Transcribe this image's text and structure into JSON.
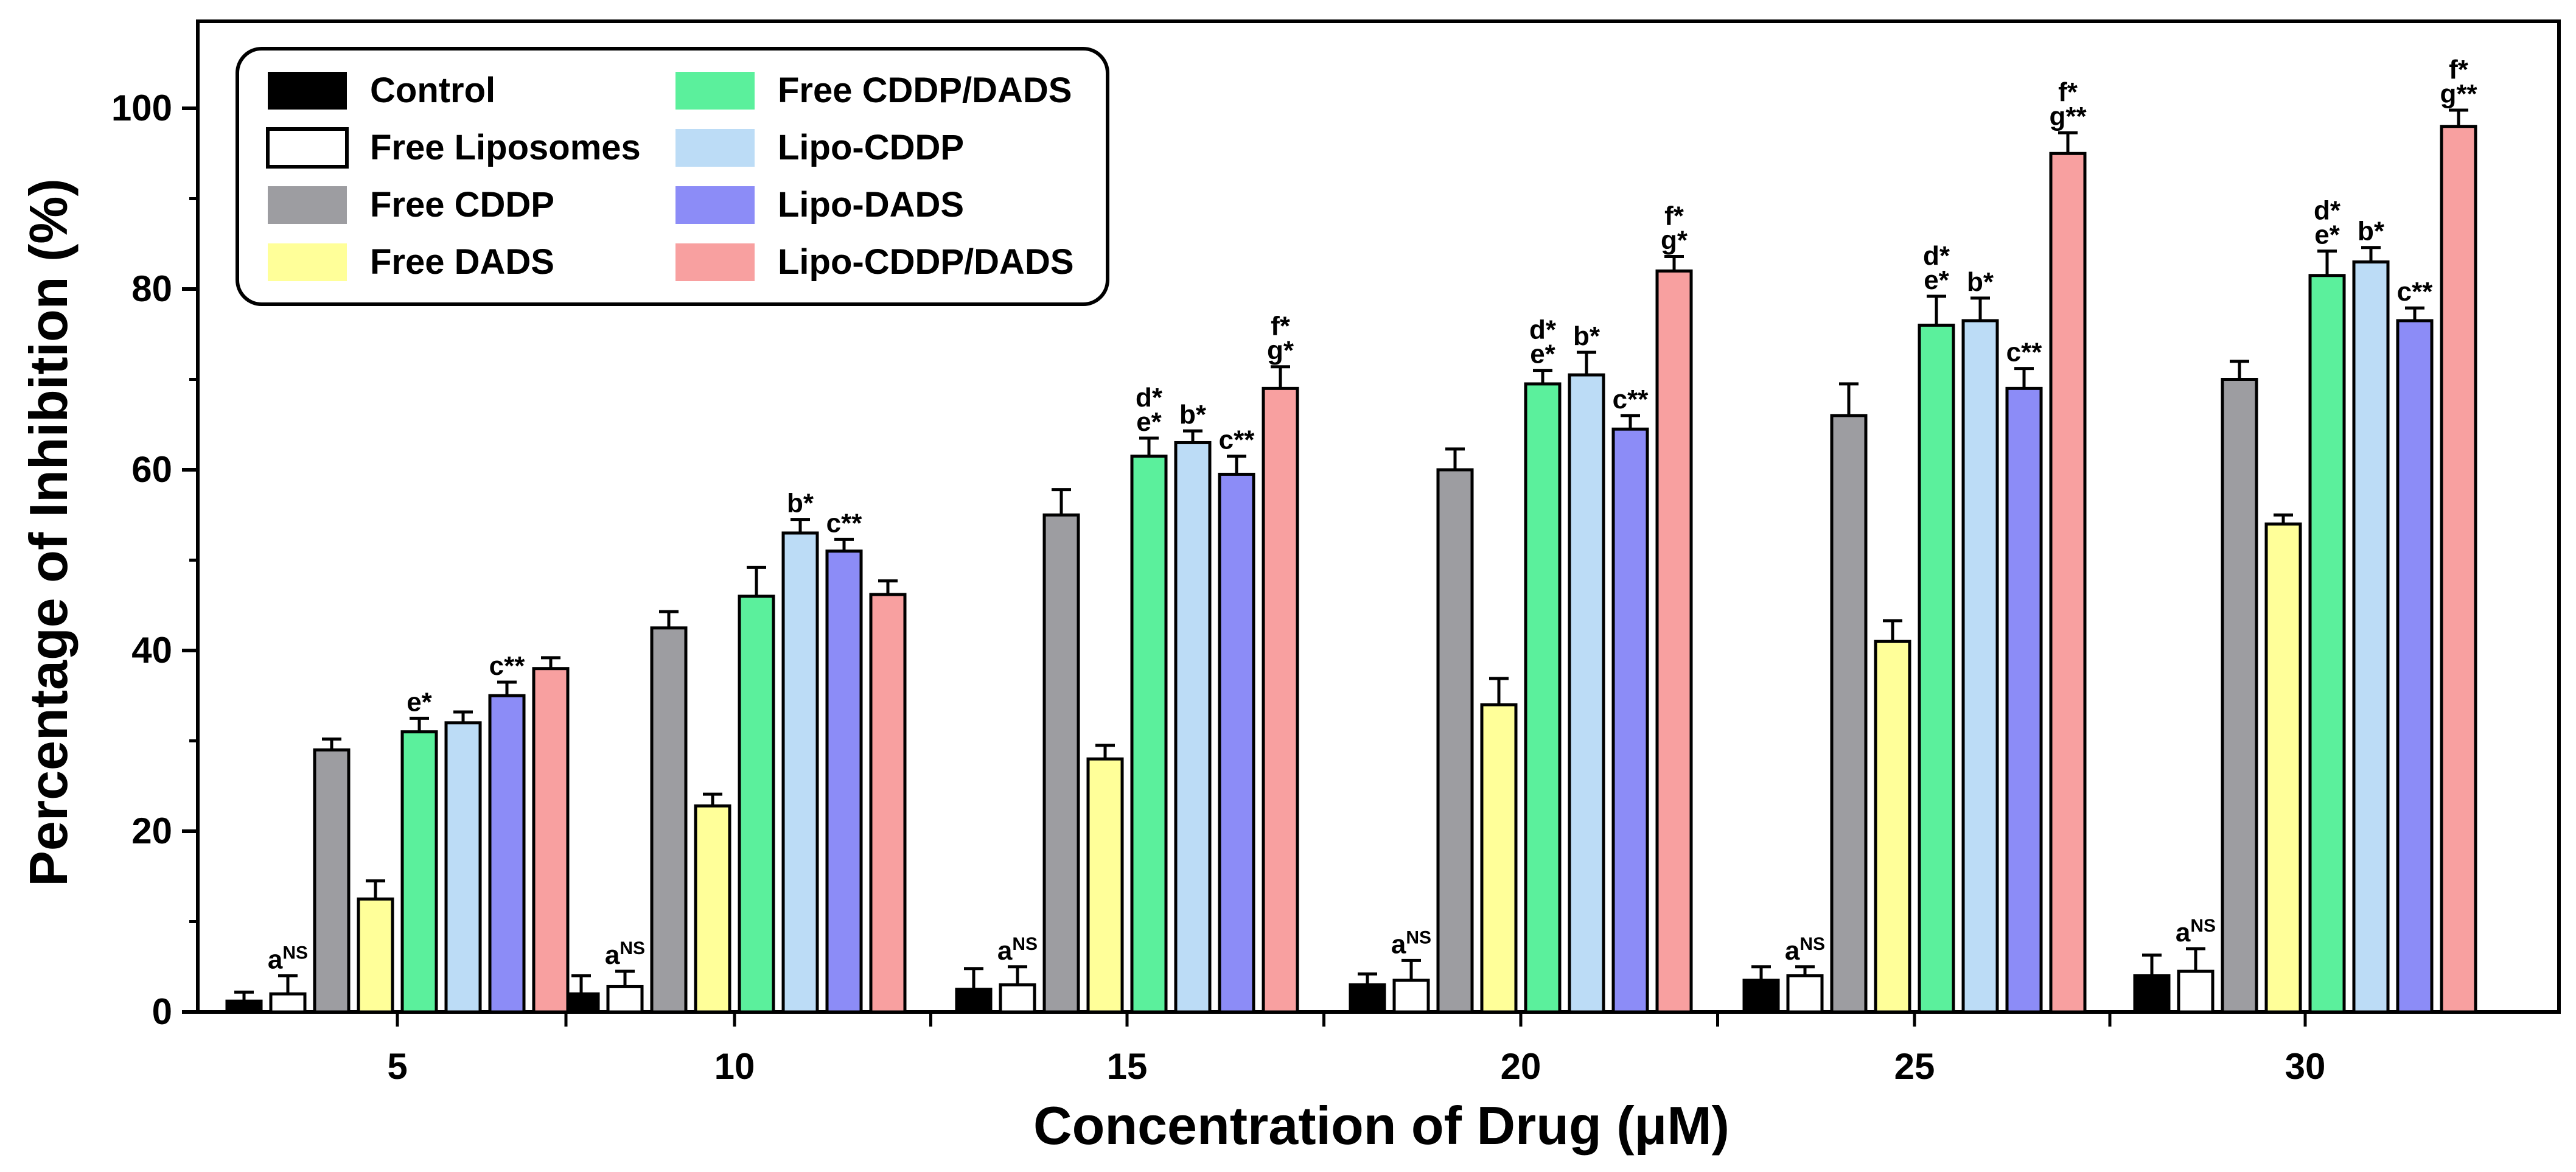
{
  "chart_data": {
    "type": "bar",
    "title": "",
    "xlabel": "Concentration of Drug (μM)",
    "ylabel": "Percentage of Inhibition (%)",
    "ylim": [
      0,
      110
    ],
    "yticks": [
      0,
      20,
      40,
      60,
      80,
      100
    ],
    "grid": false,
    "legend_position": "top-left",
    "categories": [
      "5",
      "10",
      "15",
      "20",
      "25",
      "30"
    ],
    "series": [
      {
        "name": "Control",
        "color": "#000000",
        "values": [
          1.2,
          2.0,
          2.5,
          3.0,
          3.5,
          4.0
        ],
        "errors": [
          1.0,
          2.0,
          2.3,
          1.2,
          1.5,
          2.3
        ]
      },
      {
        "name": "Free Liposomes",
        "color": "#ffffff",
        "values": [
          2.0,
          2.8,
          3.0,
          3.5,
          4.0,
          4.5
        ],
        "errors": [
          2.0,
          1.7,
          2.0,
          2.2,
          1.0,
          2.5
        ]
      },
      {
        "name": "Free CDDP",
        "color": "#9d9da1",
        "values": [
          29.0,
          42.5,
          55.0,
          60.0,
          66.0,
          70.0
        ],
        "errors": [
          1.2,
          1.8,
          2.8,
          2.3,
          3.5,
          2.0
        ]
      },
      {
        "name": "Free DADS",
        "color": "#ffff99",
        "values": [
          12.5,
          22.8,
          28.0,
          34.0,
          41.0,
          54.0
        ],
        "errors": [
          2.0,
          1.3,
          1.5,
          2.9,
          2.3,
          1.0
        ]
      },
      {
        "name": "Free CDDP/DADS",
        "color": "#5bf09c",
        "values": [
          31.0,
          46.0,
          61.5,
          69.5,
          76.0,
          81.5
        ],
        "errors": [
          1.5,
          3.2,
          2.0,
          1.5,
          3.2,
          2.7
        ]
      },
      {
        "name": "Lipo-CDDP",
        "color": "#bcdcf6",
        "values": [
          32.0,
          53.0,
          63.0,
          70.5,
          76.5,
          83.0
        ],
        "errors": [
          1.2,
          1.5,
          1.3,
          2.5,
          2.5,
          1.6
        ]
      },
      {
        "name": "Lipo-DADS",
        "color": "#8c8cf7",
        "values": [
          35.0,
          51.0,
          59.5,
          64.5,
          69.0,
          76.5
        ],
        "errors": [
          1.5,
          1.3,
          2.0,
          1.5,
          2.2,
          1.4
        ]
      },
      {
        "name": "Lipo-CDDP/DADS",
        "color": "#f8a0a0",
        "values": [
          38.0,
          46.2,
          69.0,
          82.0,
          95.0,
          98.0
        ],
        "errors": [
          1.2,
          1.5,
          2.4,
          1.6,
          2.3,
          1.8
        ]
      }
    ],
    "annotations": [
      {
        "category": 0,
        "series": 1,
        "lines": [
          {
            "base": "a",
            "sup": "NS"
          }
        ]
      },
      {
        "category": 0,
        "series": 4,
        "lines": [
          {
            "base": "e*"
          }
        ]
      },
      {
        "category": 0,
        "series": 6,
        "lines": [
          {
            "base": "c**"
          }
        ]
      },
      {
        "category": 1,
        "series": 1,
        "lines": [
          {
            "base": "a",
            "sup": "NS"
          }
        ]
      },
      {
        "category": 1,
        "series": 5,
        "lines": [
          {
            "base": "b*"
          }
        ]
      },
      {
        "category": 1,
        "series": 6,
        "lines": [
          {
            "base": "c**"
          }
        ]
      },
      {
        "category": 2,
        "series": 1,
        "lines": [
          {
            "base": "a",
            "sup": "NS"
          }
        ]
      },
      {
        "category": 2,
        "series": 4,
        "lines": [
          {
            "base": "d*"
          },
          {
            "base": "e*"
          }
        ]
      },
      {
        "category": 2,
        "series": 5,
        "lines": [
          {
            "base": "b*"
          }
        ]
      },
      {
        "category": 2,
        "series": 6,
        "lines": [
          {
            "base": "c**"
          }
        ]
      },
      {
        "category": 2,
        "series": 7,
        "lines": [
          {
            "base": "f*"
          },
          {
            "base": "g*"
          }
        ]
      },
      {
        "category": 3,
        "series": 1,
        "lines": [
          {
            "base": "a",
            "sup": "NS"
          }
        ]
      },
      {
        "category": 3,
        "series": 4,
        "lines": [
          {
            "base": "d*"
          },
          {
            "base": "e*"
          }
        ]
      },
      {
        "category": 3,
        "series": 5,
        "lines": [
          {
            "base": "b*"
          }
        ]
      },
      {
        "category": 3,
        "series": 6,
        "lines": [
          {
            "base": "c**"
          }
        ]
      },
      {
        "category": 3,
        "series": 7,
        "lines": [
          {
            "base": "f*"
          },
          {
            "base": "g*"
          }
        ]
      },
      {
        "category": 4,
        "series": 1,
        "lines": [
          {
            "base": "a",
            "sup": "NS"
          }
        ]
      },
      {
        "category": 4,
        "series": 4,
        "lines": [
          {
            "base": "d*"
          },
          {
            "base": "e*"
          }
        ]
      },
      {
        "category": 4,
        "series": 5,
        "lines": [
          {
            "base": "b*"
          }
        ]
      },
      {
        "category": 4,
        "series": 6,
        "lines": [
          {
            "base": "c**"
          }
        ]
      },
      {
        "category": 4,
        "series": 7,
        "lines": [
          {
            "base": "f*"
          },
          {
            "base": "g**"
          }
        ]
      },
      {
        "category": 5,
        "series": 1,
        "lines": [
          {
            "base": "a",
            "sup": "NS"
          }
        ]
      },
      {
        "category": 5,
        "series": 4,
        "lines": [
          {
            "base": "d*"
          },
          {
            "base": "e*"
          }
        ]
      },
      {
        "category": 5,
        "series": 5,
        "lines": [
          {
            "base": "b*"
          }
        ]
      },
      {
        "category": 5,
        "series": 6,
        "lines": [
          {
            "base": "c**"
          }
        ]
      },
      {
        "category": 5,
        "series": 7,
        "lines": [
          {
            "base": "f*"
          },
          {
            "base": "g**"
          }
        ]
      }
    ]
  }
}
